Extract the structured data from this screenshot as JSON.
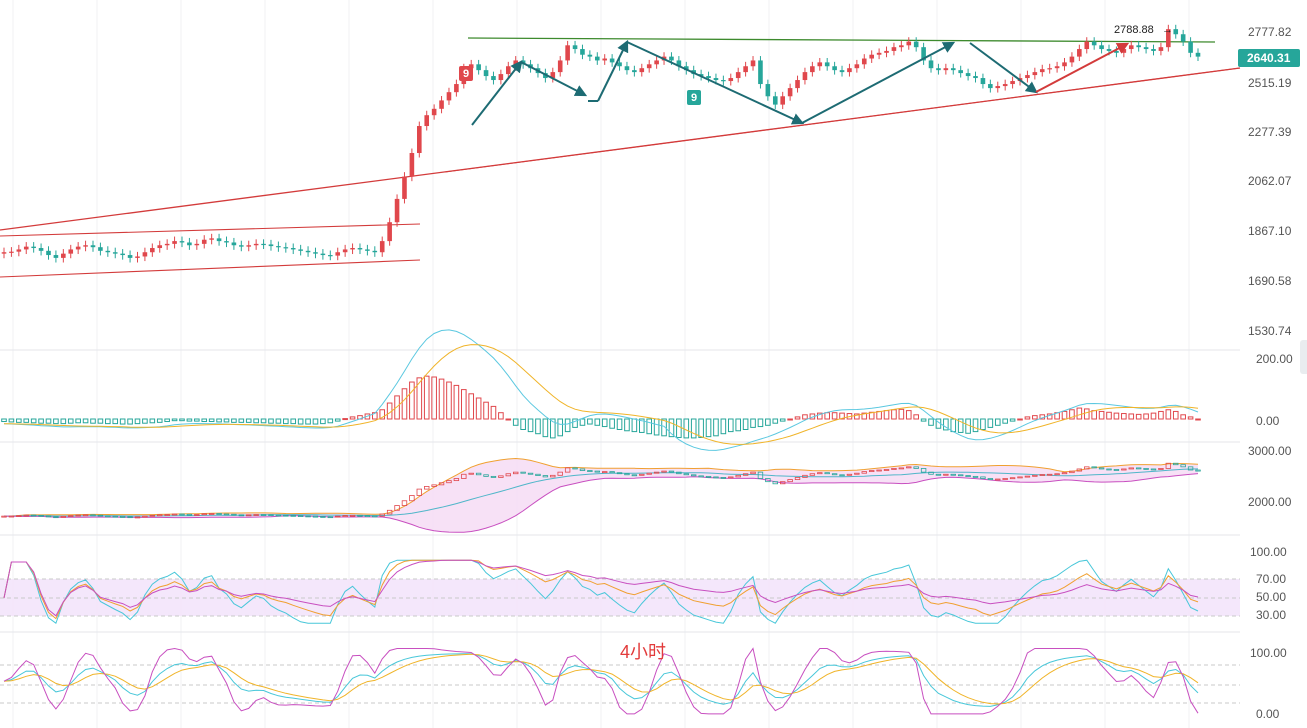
{
  "chart_data": {
    "type": "candlestick",
    "timeframe_note": "4小时",
    "last_price": "2640.31",
    "high_label": "2788.88",
    "sequential_markers": [
      "9",
      "9"
    ],
    "colors": {
      "up": "#e0474c",
      "down": "#26a69a",
      "badge": "#26a69a",
      "arrow": "#1d6b73",
      "trend_red": "#d33b3b",
      "trend_green": "#3d8a2d"
    },
    "price_axis": {
      "ticks": [
        "2777.82",
        "2515.19",
        "2277.39",
        "2062.07",
        "1867.10",
        "1690.58",
        "1530.74"
      ]
    },
    "macd_axis": {
      "ticks": [
        "200.00",
        "0.00"
      ]
    },
    "boll_axis": {
      "ticks": [
        "3000.00",
        "2000.00"
      ]
    },
    "rsi_axis": {
      "ticks": [
        "100.00",
        "70.00",
        "50.00",
        "30.00"
      ]
    },
    "kdj_axis": {
      "ticks": [
        "100.00",
        "0.00"
      ]
    },
    "closes": [
      1790,
      1792,
      1800,
      1810,
      1805,
      1795,
      1780,
      1770,
      1785,
      1800,
      1810,
      1815,
      1808,
      1795,
      1790,
      1785,
      1780,
      1770,
      1775,
      1790,
      1805,
      1815,
      1820,
      1830,
      1825,
      1815,
      1820,
      1835,
      1840,
      1830,
      1825,
      1815,
      1810,
      1815,
      1820,
      1818,
      1812,
      1808,
      1805,
      1800,
      1795,
      1790,
      1785,
      1780,
      1778,
      1790,
      1800,
      1805,
      1800,
      1795,
      1790,
      1830,
      1900,
      1990,
      2080,
      2180,
      2300,
      2350,
      2380,
      2420,
      2460,
      2500,
      2580,
      2600,
      2570,
      2540,
      2520,
      2550,
      2590,
      2620,
      2600,
      2580,
      2555,
      2530,
      2560,
      2620,
      2700,
      2680,
      2650,
      2640,
      2620,
      2630,
      2610,
      2590,
      2570,
      2560,
      2580,
      2600,
      2620,
      2640,
      2620,
      2590,
      2570,
      2550,
      2540,
      2530,
      2520,
      2515,
      2530,
      2560,
      2590,
      2620,
      2500,
      2440,
      2400,
      2440,
      2480,
      2520,
      2560,
      2590,
      2610,
      2590,
      2570,
      2560,
      2580,
      2600,
      2630,
      2650,
      2660,
      2670,
      2690,
      2700,
      2720,
      2690,
      2620,
      2580,
      2570,
      2580,
      2570,
      2555,
      2540,
      2530,
      2500,
      2480,
      2490,
      2500,
      2515,
      2530,
      2545,
      2560,
      2575,
      2580,
      2590,
      2610,
      2640,
      2680,
      2720,
      2700,
      2680,
      2670,
      2660,
      2680,
      2700,
      2690,
      2680,
      2670,
      2690,
      2788,
      2760,
      2720,
      2660,
      2640
    ],
    "macd_hist": [
      -6,
      -7,
      -8,
      -8,
      -9,
      -10,
      -10,
      -11,
      -11,
      -10,
      -9,
      -9,
      -10,
      -10,
      -11,
      -11,
      -12,
      -12,
      -11,
      -10,
      -9,
      -8,
      -6,
      -4,
      -4,
      -5,
      -5,
      -6,
      -6,
      -7,
      -7,
      -8,
      -8,
      -8,
      -9,
      -9,
      -10,
      -10,
      -11,
      -11,
      -12,
      -12,
      -12,
      -11,
      -9,
      -5,
      1,
      5,
      8,
      12,
      15,
      22,
      38,
      55,
      72,
      88,
      98,
      102,
      100,
      95,
      88,
      80,
      70,
      60,
      50,
      40,
      30,
      15,
      0,
      -15,
      -25,
      -30,
      -35,
      -42,
      -45,
      -40,
      -30,
      -20,
      -15,
      -12,
      -15,
      -18,
      -22,
      -25,
      -28,
      -30,
      -32,
      -35,
      -38,
      -40,
      -42,
      -44,
      -45,
      -45,
      -44,
      -42,
      -40,
      -35,
      -30,
      -28,
      -25,
      -20,
      -18,
      -15,
      -10,
      -5,
      0,
      5,
      10,
      12,
      14,
      15,
      15,
      14,
      13,
      12,
      14,
      16,
      18,
      20,
      22,
      23,
      20,
      10,
      -5,
      -15,
      -22,
      -26,
      -30,
      -32,
      -34,
      -30,
      -25,
      -20,
      -15,
      -10,
      -5,
      0,
      5,
      8,
      10,
      12,
      15,
      18,
      22,
      26,
      24,
      20,
      18,
      16,
      14,
      13,
      12,
      11,
      12,
      14,
      18,
      22,
      18,
      10,
      5,
      0
    ]
  }
}
